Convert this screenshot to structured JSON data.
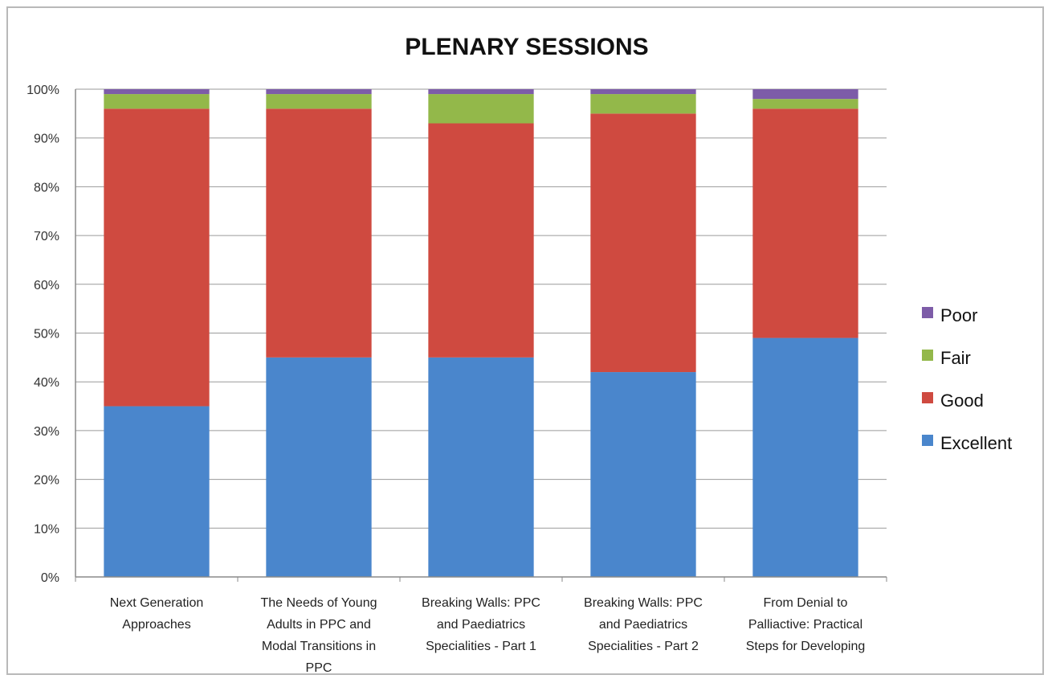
{
  "chart_data": {
    "type": "bar",
    "stacked": true,
    "percent": true,
    "title": "PLENARY SESSIONS",
    "xlabel": "",
    "ylabel": "",
    "ylim": [
      0,
      100
    ],
    "y_ticks": [
      "0%",
      "10%",
      "20%",
      "30%",
      "40%",
      "50%",
      "60%",
      "70%",
      "80%",
      "90%",
      "100%"
    ],
    "grid": true,
    "legend_position": "right",
    "categories": [
      [
        "Next Generation",
        "Approaches"
      ],
      [
        "The Needs of Young",
        "Adults in PPC and",
        "Modal Transitions in",
        "PPC"
      ],
      [
        "Breaking Walls: PPC",
        "and Paediatrics",
        "Specialities - Part 1"
      ],
      [
        "Breaking Walls: PPC",
        "and Paediatrics",
        "Specialities - Part 2"
      ],
      [
        "From Denial to",
        "Palliactive: Practical",
        "Steps for Developing"
      ]
    ],
    "series": [
      {
        "name": "Excellent",
        "color": "#4a86cc",
        "values": [
          35,
          45,
          45,
          42,
          49
        ]
      },
      {
        "name": "Good",
        "color": "#cf4a40",
        "values": [
          61,
          51,
          48,
          53,
          47
        ]
      },
      {
        "name": "Fair",
        "color": "#93b84a",
        "values": [
          3,
          3,
          6,
          4,
          2
        ]
      },
      {
        "name": "Poor",
        "color": "#7d5ca8",
        "values": [
          1,
          1,
          1,
          1,
          2
        ]
      }
    ]
  }
}
